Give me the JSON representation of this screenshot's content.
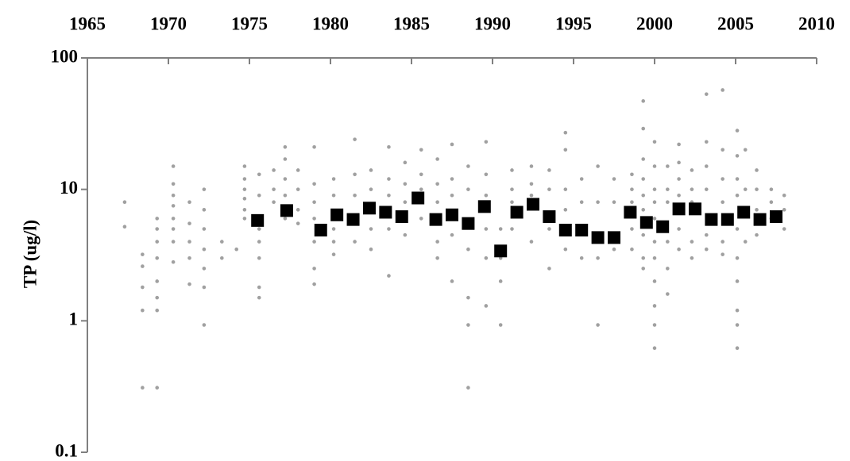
{
  "chart_data": {
    "type": "scatter",
    "y_label": "TP (ug/l)",
    "xaxis_position": "top",
    "ylog": true,
    "xlim": [
      1965,
      2010
    ],
    "xticks": [
      1965,
      1970,
      1975,
      1980,
      1985,
      1990,
      1995,
      2000,
      2005,
      2010
    ],
    "ylim": [
      0.1,
      100
    ],
    "yticks": [
      0.1,
      1,
      10,
      100
    ],
    "grid": false,
    "series": [
      {
        "color": "#a0a0a0",
        "marker": "circle",
        "x": [
          1967.3,
          1967.3,
          1968.4,
          1968.4,
          1968.4,
          1968.4,
          1968.4,
          1969.3,
          1969.3,
          1969.3,
          1969.3,
          1969.3,
          1969.3,
          1969.3,
          1969.3,
          1970.3,
          1970.3,
          1970.3,
          1970.3,
          1970.3,
          1970.3,
          1970.3,
          1970.3,
          1971.3,
          1971.3,
          1971.3,
          1971.3,
          1971.3,
          1972.2,
          1972.2,
          1972.2,
          1972.2,
          1972.2,
          1972.2,
          1972.2,
          1973.3,
          1973.3,
          1974.2,
          1974.7,
          1974.7,
          1974.7,
          1974.7,
          1974.7,
          1974.7,
          1975.6,
          1975.6,
          1975.6,
          1975.6,
          1975.6,
          1975.6,
          1975.6,
          1976.5,
          1976.5,
          1976.5,
          1977.2,
          1977.2,
          1977.2,
          1977.2,
          1977.2,
          1978,
          1978,
          1978,
          1978,
          1979,
          1979,
          1979,
          1979,
          1979,
          1979,
          1979,
          1980.2,
          1980.2,
          1980.2,
          1980.2,
          1980.2,
          1981.5,
          1981.5,
          1981.5,
          1981.5,
          1982.5,
          1982.5,
          1982.5,
          1982.5,
          1983.6,
          1983.6,
          1983.6,
          1983.6,
          1983.6,
          1984.6,
          1984.6,
          1984.6,
          1984.6,
          1985.6,
          1985.6,
          1985.6,
          1985.6,
          1986.6,
          1986.6,
          1986.6,
          1986.6,
          1986.6,
          1987.5,
          1987.5,
          1987.5,
          1987.5,
          1987.5,
          1988.5,
          1988.5,
          1988.5,
          1988.5,
          1988.5,
          1988.5,
          1989.6,
          1989.6,
          1989.6,
          1989.6,
          1989.6,
          1989.6,
          1990.5,
          1990.5,
          1990.5,
          1990.5,
          1991.2,
          1991.2,
          1991.2,
          1991.2,
          1992.4,
          1992.4,
          1992.4,
          1992.4,
          1993.5,
          1993.5,
          1993.5,
          1993.5,
          1994.5,
          1994.5,
          1994.5,
          1994.5,
          1994.5,
          1995.5,
          1995.5,
          1995.5,
          1996.5,
          1996.5,
          1996.5,
          1996.5,
          1997.5,
          1997.5,
          1997.5,
          1998.6,
          1998.6,
          1998.6,
          1998.6,
          1998.6,
          1999.3,
          1999.3,
          1999.3,
          1999.3,
          1999.3,
          1999.3,
          1999.3,
          1999.3,
          1999.3,
          2000,
          2000,
          2000,
          2000,
          2000,
          2000,
          2000,
          2000,
          2000,
          2000,
          2000,
          2000.8,
          2000.8,
          2000.8,
          2000.8,
          2000.8,
          2000.8,
          2001.5,
          2001.5,
          2001.5,
          2001.5,
          2001.5,
          2001.5,
          2002.3,
          2002.3,
          2002.3,
          2002.3,
          2002.3,
          2003.2,
          2003.2,
          2003.2,
          2003.2,
          2003.2,
          2003.2,
          2004.2,
          2004.2,
          2004.2,
          2004.2,
          2004.2,
          2004.2,
          2005.1,
          2005.1,
          2005.1,
          2005.1,
          2005.1,
          2005.1,
          2005.1,
          2005.1,
          2005.1,
          2005.1,
          2005.6,
          2005.6,
          2005.6,
          2006.3,
          2006.3,
          2006.3,
          2006.3,
          2007.2,
          2007.2,
          2007.2,
          2008,
          2008,
          2008
        ],
        "values": [
          8,
          5.2,
          3.2,
          2.6,
          1.8,
          1.2,
          0.31,
          6,
          5,
          4,
          3,
          2,
          1.5,
          1.2,
          0.31,
          15,
          11,
          9,
          7.5,
          6,
          5,
          4,
          2.8,
          8,
          5.5,
          4,
          3,
          1.9,
          10,
          7,
          5,
          3.5,
          2.5,
          1.8,
          0.93,
          4,
          3,
          3.5,
          15,
          12,
          10,
          8.5,
          7,
          6,
          13,
          9,
          5,
          4,
          3,
          1.8,
          1.5,
          14,
          10,
          8,
          21,
          17,
          12,
          9,
          6,
          14,
          10,
          7,
          5.5,
          21,
          11,
          8,
          6,
          4,
          2.5,
          1.9,
          12,
          9,
          5,
          4,
          3.2,
          24,
          13,
          9,
          4,
          14,
          10,
          5,
          3.5,
          21,
          12,
          9,
          5,
          2.2,
          16,
          11,
          8,
          4.5,
          20,
          13,
          10,
          6,
          17,
          11,
          8,
          4,
          3,
          22,
          12,
          9,
          4.5,
          2,
          15,
          10,
          3.5,
          1.5,
          0.93,
          0.31,
          23,
          13,
          9,
          5,
          3,
          1.3,
          5,
          3,
          2,
          0.93,
          14,
          10,
          8,
          5,
          15,
          11,
          9,
          4,
          14,
          10,
          5,
          2.5,
          27,
          20,
          10,
          7,
          3.5,
          12,
          8,
          3,
          15,
          8,
          3,
          0.93,
          12,
          8,
          3.5,
          13,
          10,
          8,
          5,
          3.5,
          47,
          29,
          17,
          12,
          9,
          7,
          4.5,
          3,
          2.5,
          23,
          15,
          10,
          8,
          6,
          4,
          3,
          2,
          1.3,
          0.93,
          0.62,
          15,
          10,
          8,
          4,
          2.5,
          1.6,
          22,
          16,
          12,
          9,
          5,
          3.5,
          14,
          10,
          8,
          4,
          3,
          53,
          23,
          15,
          10,
          4.5,
          3.5,
          57,
          20,
          12,
          8,
          4,
          3.2,
          28,
          18,
          12,
          9,
          5,
          3,
          2,
          1.2,
          0.93,
          0.62,
          20,
          10,
          4,
          14,
          10,
          7,
          4.5,
          10,
          8,
          6,
          9,
          7,
          5
        ]
      },
      {
        "color": "#000000",
        "marker": "square",
        "x": [
          1975.5,
          1977.3,
          1979.4,
          1980.4,
          1981.4,
          1982.4,
          1983.4,
          1984.4,
          1985.4,
          1986.5,
          1987.5,
          1988.5,
          1989.5,
          1990.5,
          1991.5,
          1992.5,
          1993.5,
          1994.5,
          1995.5,
          1996.5,
          1997.5,
          1998.5,
          1999.5,
          2000.5,
          2001.5,
          2002.5,
          2003.5,
          2004.5,
          2005.5,
          2006.5,
          2007.5
        ],
        "values": [
          5.8,
          6.9,
          4.9,
          6.4,
          5.9,
          7.2,
          6.7,
          6.2,
          8.6,
          5.9,
          6.4,
          5.5,
          7.4,
          3.4,
          6.7,
          7.7,
          6.2,
          4.9,
          4.9,
          4.3,
          4.3,
          6.7,
          5.6,
          5.2,
          7.1,
          7.1,
          5.9,
          5.9,
          6.7,
          5.9,
          6.2
        ]
      }
    ]
  }
}
